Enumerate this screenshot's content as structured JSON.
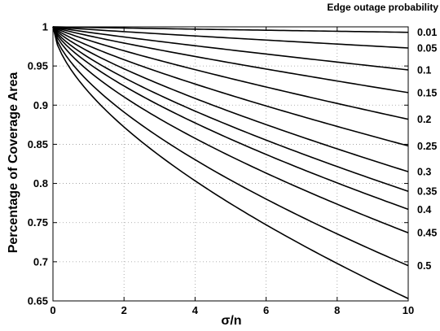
{
  "chart_data": {
    "type": "line",
    "title": "",
    "legend_title": "Edge outage probability",
    "xlabel": "σ/n",
    "ylabel": "Percentage of Coverage Area",
    "xlim": [
      0,
      10
    ],
    "ylim": [
      0.65,
      1
    ],
    "xticks": [
      "0",
      "2",
      "4",
      "6",
      "8",
      "10"
    ],
    "yticks": [
      "0.65",
      "0.7",
      "0.75",
      "0.8",
      "0.85",
      "0.9",
      "0.95",
      "1"
    ],
    "grid": true,
    "legend_placement": "right",
    "series": [
      {
        "name": "0.01",
        "x": [
          0,
          10
        ],
        "y": [
          1.0,
          0.993
        ]
      },
      {
        "name": "0.05",
        "x": [
          0,
          10
        ],
        "y": [
          1.0,
          0.973
        ]
      },
      {
        "name": "0.1",
        "x": [
          0,
          10
        ],
        "y": [
          1.0,
          0.945
        ]
      },
      {
        "name": "0.15",
        "x": [
          0,
          10
        ],
        "y": [
          1.0,
          0.916
        ]
      },
      {
        "name": "0.2",
        "x": [
          0,
          10
        ],
        "y": [
          1.0,
          0.882
        ]
      },
      {
        "name": "0.25",
        "x": [
          0,
          10
        ],
        "y": [
          1.0,
          0.848
        ]
      },
      {
        "name": "0.3",
        "x": [
          0,
          10
        ],
        "y": [
          1.0,
          0.815
        ]
      },
      {
        "name": "0.35",
        "x": [
          0,
          10
        ],
        "y": [
          1.0,
          0.79
        ]
      },
      {
        "name": "0.4",
        "x": [
          0,
          10
        ],
        "y": [
          1.0,
          0.767
        ]
      },
      {
        "name": "0.45",
        "x": [
          0,
          10
        ],
        "y": [
          1.0,
          0.737
        ]
      },
      {
        "name": "0.5",
        "x": [
          0,
          10
        ],
        "y": [
          1.0,
          0.695
        ]
      },
      {
        "name": "",
        "x": [
          0,
          10
        ],
        "y": [
          1.0,
          0.653
        ]
      }
    ],
    "curve_shape_exponents": [
      0.95,
      0.92,
      0.9,
      0.87,
      0.84,
      0.8,
      0.77,
      0.73,
      0.7,
      0.67,
      0.64,
      0.62
    ]
  }
}
